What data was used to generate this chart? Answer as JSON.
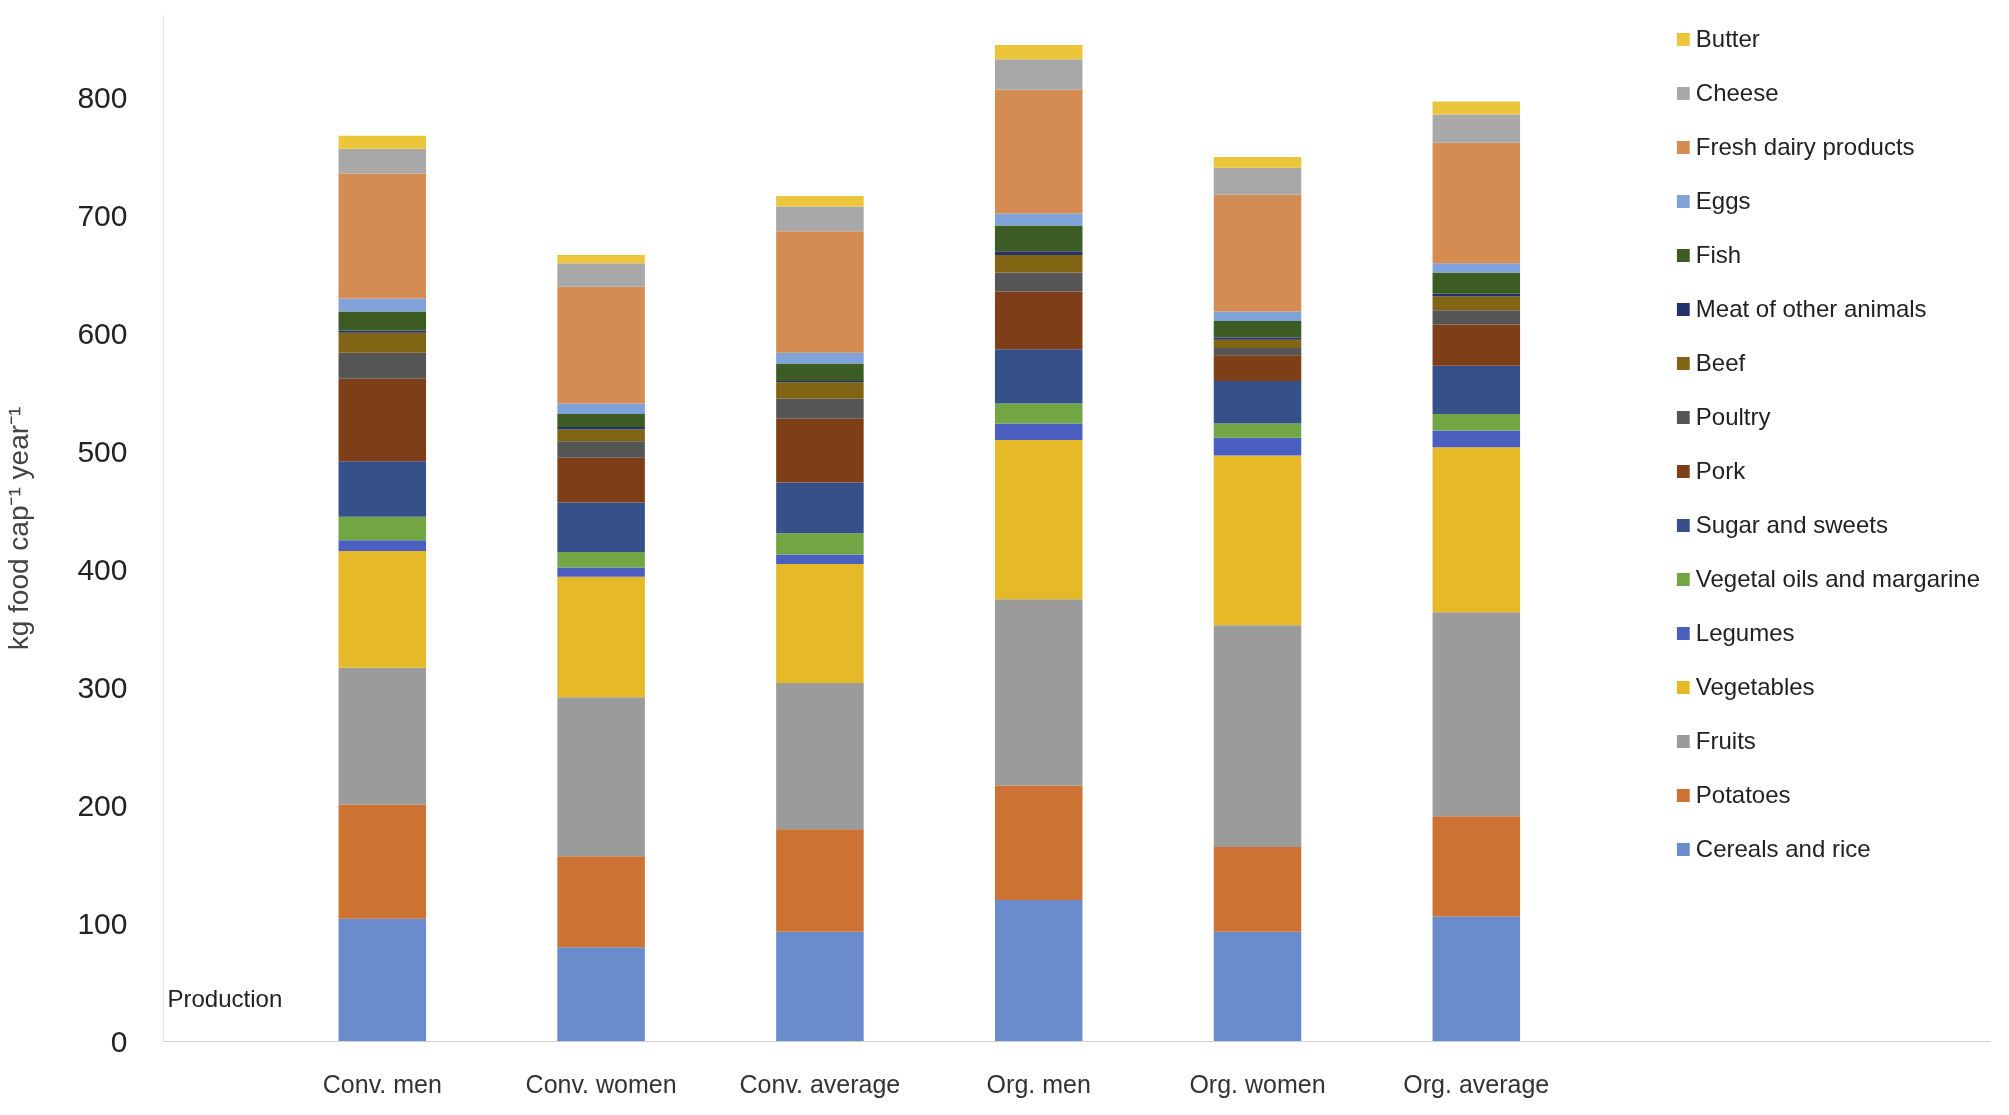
{
  "chart_data": {
    "type": "bar",
    "stacked": true,
    "ylabel": "kg food cap⁻¹ year⁻¹",
    "categories": [
      "Conv. men",
      "Conv. women",
      "Conv. average",
      "Org. men",
      "Org. women",
      "Org. average"
    ],
    "ylim": [
      0,
      870
    ],
    "yticks": [
      0,
      100,
      200,
      300,
      400,
      500,
      600,
      700,
      800
    ],
    "grid": false,
    "legend": "right",
    "annotations": [
      "Production"
    ],
    "series": [
      {
        "name": "Cereals and rice",
        "color": "#6a8ccc",
        "values": [
          104,
          80,
          93,
          120,
          93,
          106
        ]
      },
      {
        "name": "Potatoes",
        "color": "#cc7232",
        "values": [
          97,
          77,
          87,
          97,
          72,
          85
        ]
      },
      {
        "name": "Fruits",
        "color": "#9b9b9b",
        "values": [
          116,
          135,
          124,
          158,
          188,
          173
        ]
      },
      {
        "name": "Vegetables",
        "color": "#e6b928",
        "values": [
          99,
          102,
          101,
          135,
          144,
          140
        ]
      },
      {
        "name": "Legumes",
        "color": "#4a5fbf",
        "values": [
          9,
          8,
          8,
          14,
          15,
          14
        ]
      },
      {
        "name": "Vegetal oils and margarine",
        "color": "#72a544",
        "values": [
          20,
          13,
          18,
          17,
          12,
          14
        ]
      },
      {
        "name": "Sugar and sweets",
        "color": "#36508a",
        "values": [
          47,
          42,
          43,
          46,
          36,
          41
        ]
      },
      {
        "name": "Pork",
        "color": "#7e3e17",
        "values": [
          70,
          38,
          54,
          49,
          22,
          35
        ]
      },
      {
        "name": "Poultry",
        "color": "#555555",
        "values": [
          22,
          14,
          17,
          16,
          6,
          12
        ]
      },
      {
        "name": "Beef",
        "color": "#816414",
        "values": [
          17,
          10,
          14,
          15,
          7,
          12
        ]
      },
      {
        "name": "Meat of other animals",
        "color": "#24316a",
        "values": [
          2,
          2,
          1,
          3,
          2,
          2
        ]
      },
      {
        "name": "Fish",
        "color": "#3d5c24",
        "values": [
          16,
          11,
          15,
          22,
          14,
          18
        ]
      },
      {
        "name": "Eggs",
        "color": "#7fa2d9",
        "values": [
          11,
          9,
          9,
          10,
          8,
          8
        ]
      },
      {
        "name": "Fresh dairy products",
        "color": "#d48c52",
        "values": [
          106,
          99,
          103,
          105,
          99,
          102
        ]
      },
      {
        "name": "Cheese",
        "color": "#a8a8a8",
        "values": [
          21,
          20,
          21,
          26,
          23,
          24
        ]
      },
      {
        "name": "Butter",
        "color": "#ebc53a",
        "values": [
          11,
          7,
          9,
          12,
          9,
          11
        ]
      }
    ]
  }
}
